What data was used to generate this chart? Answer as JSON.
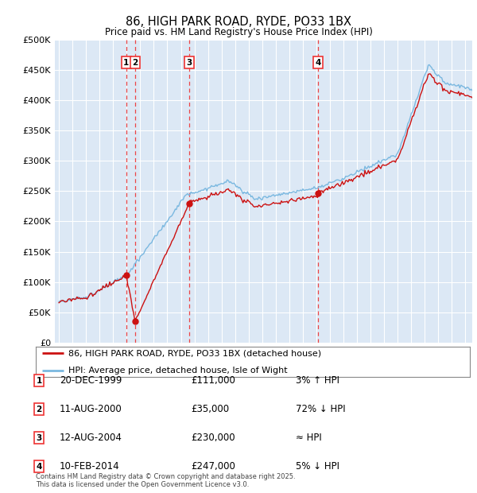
{
  "title": "86, HIGH PARK ROAD, RYDE, PO33 1BX",
  "subtitle": "Price paid vs. HM Land Registry's House Price Index (HPI)",
  "ylabel_ticks": [
    "£0",
    "£50K",
    "£100K",
    "£150K",
    "£200K",
    "£250K",
    "£300K",
    "£350K",
    "£400K",
    "£450K",
    "£500K"
  ],
  "ylim": [
    0,
    500000
  ],
  "background_color": "#e8f0f8",
  "plot_bg_color": "#dce8f5",
  "grid_color": "#ffffff",
  "legend_line1": "86, HIGH PARK ROAD, RYDE, PO33 1BX (detached house)",
  "legend_line2": "HPI: Average price, detached house, Isle of Wight",
  "transactions": [
    {
      "num": 1,
      "date": "20-DEC-1999",
      "price": "£111,000",
      "rel": "3% ↑ HPI",
      "year": 1999.97,
      "value": 111000
    },
    {
      "num": 2,
      "date": "11-AUG-2000",
      "price": "£35,000",
      "rel": "72% ↓ HPI",
      "year": 2000.62,
      "value": 35000
    },
    {
      "num": 3,
      "date": "12-AUG-2004",
      "price": "£230,000",
      "rel": "≈ HPI",
      "year": 2004.62,
      "value": 230000
    },
    {
      "num": 4,
      "date": "10-FEB-2014",
      "price": "£247,000",
      "rel": "5% ↓ HPI",
      "year": 2014.12,
      "value": 247000
    }
  ],
  "footnote1": "Contains HM Land Registry data © Crown copyright and database right 2025.",
  "footnote2": "This data is licensed under the Open Government Licence v3.0.",
  "hpi_color": "#7ab8e0",
  "price_color": "#cc1111",
  "vline_color": "#ee3333",
  "marker_color": "#cc1111",
  "xlim_left": 1994.7,
  "xlim_right": 2025.5
}
